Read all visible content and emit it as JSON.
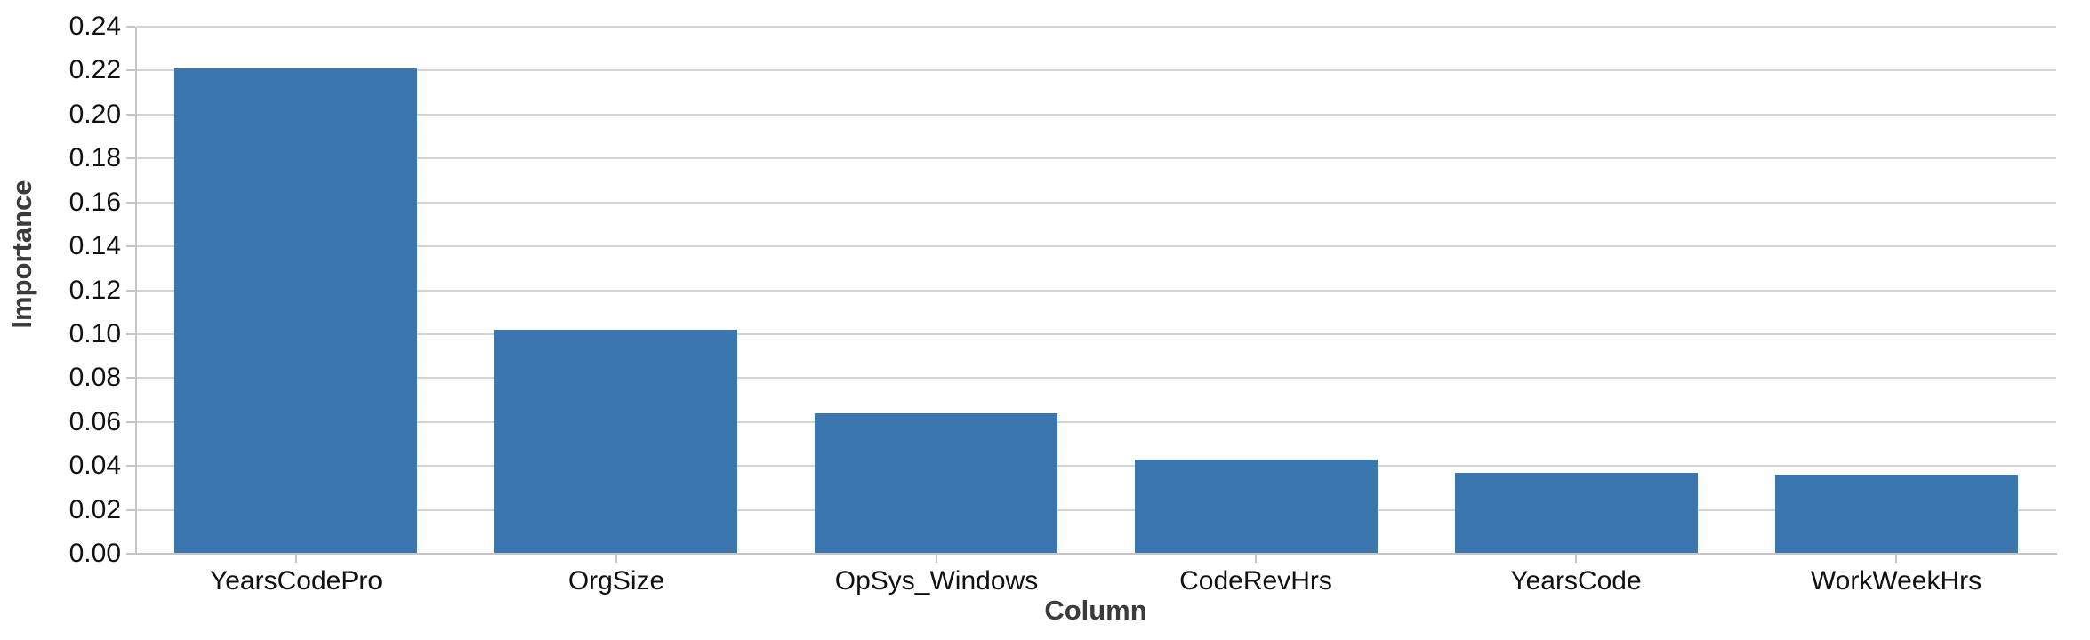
{
  "chart_data": {
    "type": "bar",
    "title": "",
    "xlabel": "Column",
    "ylabel": "Importance",
    "categories": [
      "YearsCodePro",
      "OrgSize",
      "OpSys_Windows",
      "CodeRevHrs",
      "YearsCode",
      "WorkWeekHrs"
    ],
    "values": [
      0.221,
      0.102,
      0.064,
      0.043,
      0.037,
      0.036
    ],
    "ylim": [
      0,
      0.24
    ],
    "y_tick_labels": [
      "0.00",
      "0.02",
      "0.04",
      "0.06",
      "0.08",
      "0.10",
      "0.12",
      "0.14",
      "0.16",
      "0.18",
      "0.20",
      "0.22",
      "0.24"
    ],
    "grid": true,
    "legend": "none"
  },
  "colors": {
    "bar": "#3c76af",
    "grid": "#d4d4d4",
    "axis": "#c6c6c6",
    "tick_label": "#111111",
    "axis_title": "#3b3b3b",
    "background": "#ffffff"
  }
}
